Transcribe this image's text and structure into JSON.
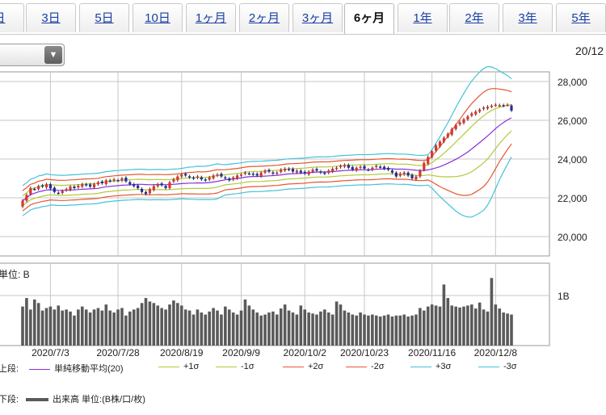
{
  "tabs": [
    {
      "label": "日"
    },
    {
      "label": "3日"
    },
    {
      "label": "5日"
    },
    {
      "label": "10日"
    },
    {
      "label": "1ヶ月"
    },
    {
      "label": "2ヶ月"
    },
    {
      "label": "3ヶ月"
    },
    {
      "label": "6ヶ月"
    },
    {
      "label": "1年"
    },
    {
      "label": "2年"
    },
    {
      "label": "3年"
    },
    {
      "label": "5年"
    }
  ],
  "active_tab": "6ヶ月",
  "corner_date": "20/12",
  "colors": {
    "up": "#e0322a",
    "down": "#1e2fa3",
    "sma": "#8a2fd6",
    "s1": "#b3c93a",
    "s2": "#e4572e",
    "s3": "#45c1d8",
    "volume": "#5a5a5a",
    "grid": "#c7c7c7"
  },
  "chart_data": {
    "type": "candlestick-bollinger",
    "x_ticks": [
      "2020/7/3",
      "2020/7/28",
      "2020/8/19",
      "2020/9/9",
      "2020/10/2",
      "2020/10/23",
      "2020/11/16",
      "2020/12/8"
    ],
    "y_ticks": [
      "28,000",
      "26,000",
      "24,000",
      "22,000",
      "20,000"
    ],
    "ylim": [
      19000,
      28500
    ],
    "volume_label": "1B",
    "volume_unit_label": "単位: B",
    "sessions": 124,
    "close": [
      21850,
      22150,
      22500,
      22450,
      22600,
      22580,
      22700,
      22480,
      22300,
      22250,
      22350,
      22450,
      22580,
      22500,
      22620,
      22700,
      22650,
      22580,
      22700,
      22800,
      22750,
      22900,
      22850,
      22950,
      22900,
      23000,
      22850,
      22700,
      22600,
      22500,
      22300,
      22200,
      22450,
      22600,
      22700,
      22650,
      22500,
      22800,
      22950,
      23100,
      23200,
      23150,
      23050,
      23000,
      23100,
      22950,
      22900,
      23050,
      23150,
      23200,
      23100,
      23000,
      22900,
      23050,
      23150,
      23200,
      23300,
      23250,
      23200,
      23150,
      23300,
      23400,
      23350,
      23250,
      23300,
      23450,
      23500,
      23450,
      23350,
      23400,
      23300,
      23250,
      23350,
      23450,
      23400,
      23300,
      23250,
      23400,
      23500,
      23550,
      23650,
      23700,
      23550,
      23450,
      23550,
      23600,
      23500,
      23450,
      23550,
      23650,
      23600,
      23500,
      23450,
      23300,
      23100,
      23250,
      23300,
      23150,
      23000,
      23100,
      23400,
      23800,
      24100,
      24400,
      24700,
      24900,
      25100,
      25300,
      25550,
      25750,
      25900,
      26050,
      26200,
      26350,
      26450,
      26550,
      26650,
      26700,
      26750,
      26800,
      26780,
      26750,
      26800,
      26500
    ],
    "volume_ratio": [
      0.78,
      0.95,
      0.72,
      0.92,
      0.85,
      0.7,
      0.75,
      0.78,
      0.72,
      0.8,
      0.7,
      0.72,
      0.68,
      0.6,
      0.72,
      0.78,
      0.72,
      0.66,
      0.72,
      0.75,
      0.7,
      0.82,
      0.7,
      0.66,
      0.72,
      0.75,
      0.6,
      0.68,
      0.72,
      0.75,
      0.85,
      0.95,
      0.88,
      0.85,
      0.8,
      0.75,
      0.72,
      0.82,
      0.9,
      0.85,
      0.8,
      0.72,
      0.7,
      0.62,
      0.72,
      0.66,
      0.62,
      0.68,
      0.75,
      0.7,
      0.62,
      0.78,
      0.72,
      0.66,
      0.62,
      0.7,
      0.92,
      0.8,
      0.72,
      0.66,
      0.6,
      0.62,
      0.66,
      0.68,
      0.62,
      0.74,
      0.82,
      0.7,
      0.66,
      0.62,
      0.8,
      0.72,
      0.66,
      0.64,
      0.62,
      0.68,
      0.72,
      0.66,
      0.62,
      0.88,
      0.82,
      0.7,
      0.66,
      0.62,
      0.6,
      0.66,
      0.62,
      0.6,
      0.62,
      0.6,
      0.58,
      0.6,
      0.62,
      0.58,
      0.6,
      0.6,
      0.62,
      0.58,
      0.6,
      0.62,
      0.75,
      0.7,
      0.78,
      0.82,
      0.8,
      0.78,
      1.22,
      0.95,
      0.8,
      0.78,
      0.76,
      0.78,
      0.8,
      0.82,
      0.74,
      0.86,
      0.72,
      0.68,
      1.35,
      0.82,
      0.74,
      0.66,
      0.64,
      0.62
    ]
  },
  "legend_top": {
    "label": "上段:",
    "items": [
      {
        "name": "単純移動平均(20)"
      },
      {
        "name": "+1σ"
      },
      {
        "name": "-1σ"
      },
      {
        "name": "+2σ"
      },
      {
        "name": "-2σ"
      },
      {
        "name": "+3σ"
      },
      {
        "name": "-3σ"
      }
    ]
  },
  "legend_bottom": {
    "label": "下段:",
    "item": "出来高 単位:(B株/口/枚)"
  }
}
